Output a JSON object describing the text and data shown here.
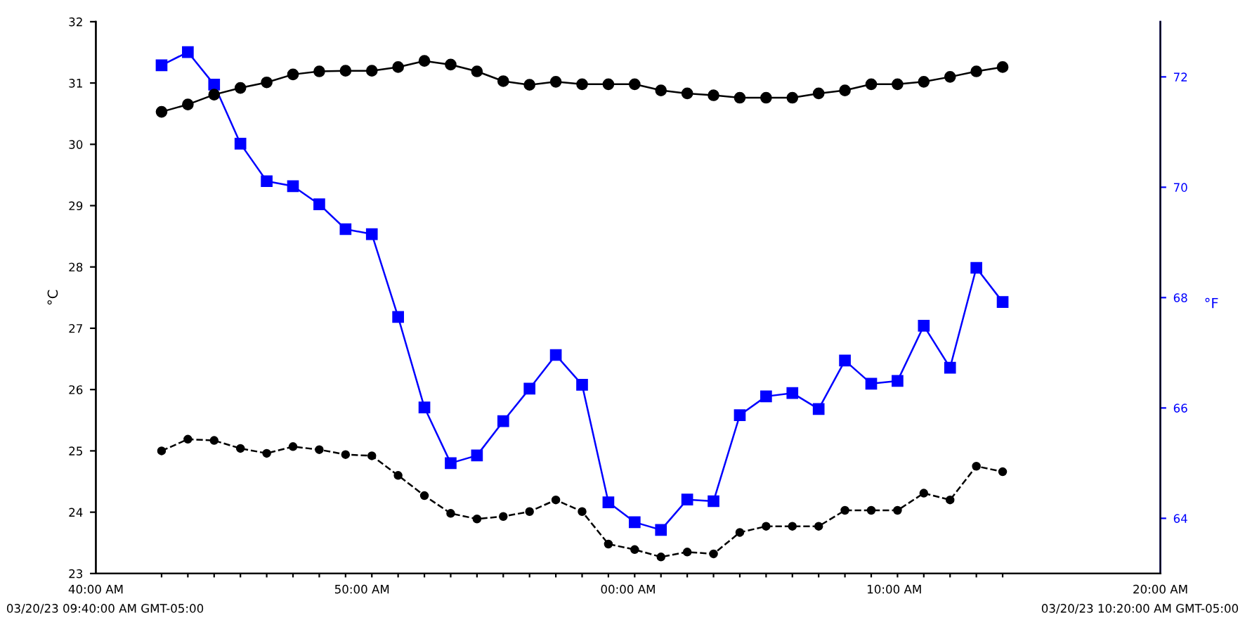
{
  "chart_data": {
    "type": "line",
    "ylabel": "°C",
    "y2label": "°F",
    "categories": [
      null,
      null,
      null,
      null,
      null,
      null,
      null,
      null,
      null,
      null,
      null,
      null,
      null,
      null,
      null,
      null,
      null,
      null,
      null,
      null,
      null,
      null,
      null,
      null,
      null,
      null,
      null,
      null,
      null,
      null,
      null,
      null,
      null
    ],
    "series": [
      {
        "color": "#000000",
        "marker": "circle",
        "line_style": "solid",
        "values": [
          30.53,
          30.65,
          30.81,
          30.92,
          31.01,
          31.14,
          31.19,
          31.2,
          31.2,
          31.26,
          31.36,
          31.3,
          31.19,
          31.03,
          30.97,
          31.02,
          30.98,
          30.98,
          30.98,
          30.88,
          30.83,
          30.8,
          30.76,
          30.76,
          30.76,
          30.83,
          30.88,
          30.98,
          30.98,
          31.02,
          31.1,
          31.19,
          31.26
        ]
      },
      {
        "color": "#0000ff",
        "marker": "square",
        "line_style": "solid",
        "axis": "y2",
        "values": [
          72.21,
          72.45,
          71.86,
          70.79,
          70.11,
          70.02,
          69.69,
          69.24,
          69.15,
          67.65,
          66.01,
          65.0,
          65.14,
          65.76,
          66.35,
          66.96,
          66.42,
          64.29,
          63.93,
          63.79,
          64.34,
          64.31,
          65.87,
          66.21,
          66.27,
          65.98,
          66.86,
          66.44,
          66.49,
          67.49,
          66.73,
          68.54,
          67.92
        ]
      },
      {
        "color": "#000000",
        "marker": "circle",
        "line_style": "dashed",
        "values": [
          25.0,
          25.19,
          25.17,
          25.04,
          24.96,
          25.07,
          25.02,
          24.94,
          24.92,
          24.6,
          24.27,
          23.98,
          23.89,
          23.93,
          24.01,
          24.2,
          24.01,
          23.48,
          23.39,
          23.27,
          23.35,
          23.32,
          23.67,
          23.77,
          23.77,
          23.77,
          24.03,
          24.03,
          24.03,
          24.31,
          24.2,
          24.75,
          24.66
        ]
      }
    ],
    "annotations": [
      "40:00 AM",
      "50:00 AM",
      "00:00 AM",
      "10:00 AM",
      "20:00 AM",
      "03/20/23 09:40:00 AM GMT-05:00",
      "03/20/23 10:20:00 AM GMT-05:00"
    ],
    "ylim": [
      23,
      32
    ],
    "yticks": [
      23,
      24,
      25,
      26,
      27,
      28,
      29,
      30,
      31,
      32
    ],
    "y2lim": [
      63,
      73
    ],
    "y2ticks": [
      64,
      66,
      68,
      70,
      72
    ],
    "grid": false
  }
}
